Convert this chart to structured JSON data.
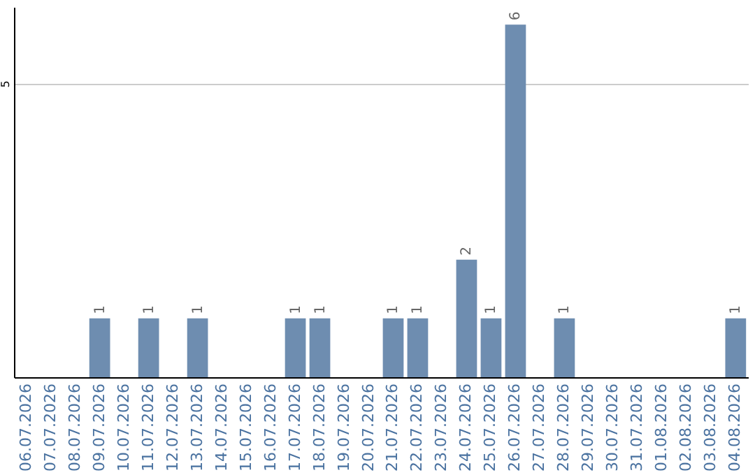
{
  "chart_data": {
    "type": "bar",
    "categories": [
      "06.07.2026",
      "07.07.2026",
      "08.07.2026",
      "09.07.2026",
      "10.07.2026",
      "11.07.2026",
      "12.07.2026",
      "13.07.2026",
      "14.07.2026",
      "15.07.2026",
      "16.07.2026",
      "17.07.2026",
      "18.07.2026",
      "19.07.2026",
      "20.07.2026",
      "21.07.2026",
      "22.07.2026",
      "23.07.2026",
      "24.07.2026",
      "25.07.2026",
      "26.07.2026",
      "27.07.2026",
      "28.07.2026",
      "29.07.2026",
      "30.07.2026",
      "31.07.2026",
      "01.08.2026",
      "02.08.2026",
      "03.08.2026",
      "04.08.2026"
    ],
    "values": [
      0,
      0,
      0,
      1,
      0,
      1,
      0,
      1,
      0,
      0,
      0,
      1,
      1,
      0,
      0,
      1,
      1,
      0,
      2,
      1,
      6,
      0,
      1,
      0,
      0,
      0,
      0,
      0,
      0,
      1
    ],
    "value_labels": [
      null,
      null,
      null,
      "1",
      null,
      "1",
      null,
      "1",
      null,
      null,
      null,
      "1",
      "1",
      null,
      null,
      "1",
      "1",
      null,
      "2",
      "1",
      "6",
      null,
      "1",
      null,
      null,
      null,
      null,
      null,
      null,
      "1"
    ],
    "color": "#6e8db0",
    "ylim": [
      0,
      6.3
    ],
    "yticks": [
      5
    ],
    "grid": "y"
  }
}
